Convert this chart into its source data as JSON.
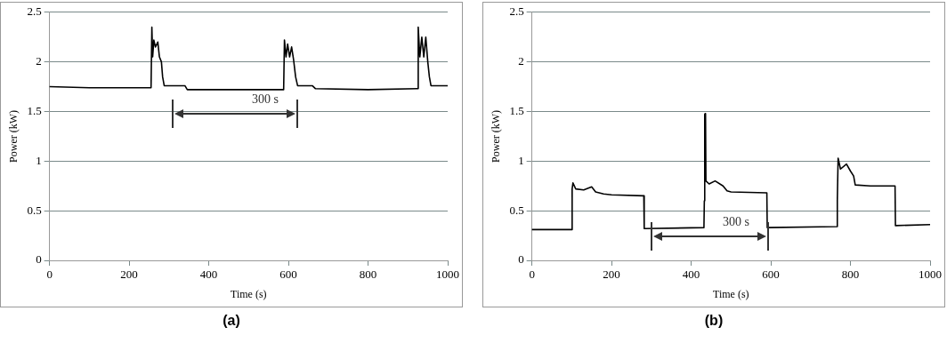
{
  "chart_data": [
    {
      "type": "line",
      "title": "(a)",
      "xlabel": "Time (s)",
      "ylabel": "Power (kW)",
      "x": [
        0,
        100,
        200,
        255,
        257,
        259,
        262,
        266,
        272,
        276,
        281,
        284,
        288,
        340,
        346,
        450,
        588,
        590,
        594,
        598,
        603,
        608,
        613,
        618,
        623,
        660,
        668,
        800,
        924,
        926,
        930,
        935,
        940,
        945,
        950,
        954,
        958,
        1000
      ],
      "series": [
        {
          "color": "#000000",
          "values": [
            1.75,
            1.74,
            1.74,
            1.74,
            2.35,
            2.05,
            2.22,
            2.15,
            2.2,
            2.05,
            2.0,
            1.85,
            1.76,
            1.76,
            1.72,
            1.72,
            1.72,
            2.22,
            2.05,
            2.18,
            2.05,
            2.15,
            2.02,
            1.85,
            1.76,
            1.76,
            1.73,
            1.72,
            1.73,
            2.35,
            2.05,
            2.25,
            2.05,
            2.25,
            2.0,
            1.85,
            1.76,
            1.76
          ]
        }
      ],
      "xlim": [
        0,
        1000
      ],
      "xticks": [
        0,
        200,
        400,
        600,
        800,
        1000
      ],
      "ylim": [
        0,
        2.5
      ],
      "yticks": [
        0,
        0.5,
        1,
        1.5,
        2,
        2.5
      ],
      "grid": "y",
      "annotations": [
        "300 s"
      ]
    },
    {
      "type": "line",
      "title": "(b)",
      "xlabel": "Time (s)",
      "ylabel": "Power (kW)",
      "x": [
        0,
        100,
        101,
        103,
        110,
        130,
        150,
        160,
        180,
        200,
        281,
        282,
        432,
        433,
        434,
        435,
        436,
        437,
        445,
        460,
        480,
        490,
        500,
        590,
        591,
        766,
        767,
        769,
        775,
        790,
        800,
        808,
        812,
        850,
        912,
        913,
        1000
      ],
      "series": [
        {
          "color": "#000000",
          "values": [
            0.31,
            0.31,
            0.72,
            0.78,
            0.72,
            0.71,
            0.74,
            0.69,
            0.67,
            0.66,
            0.65,
            0.32,
            0.33,
            0.6,
            1.47,
            1.48,
            1.47,
            0.8,
            0.77,
            0.8,
            0.75,
            0.7,
            0.69,
            0.68,
            0.33,
            0.34,
            0.6,
            1.03,
            0.92,
            0.97,
            0.9,
            0.85,
            0.76,
            0.75,
            0.75,
            0.35,
            0.36
          ]
        }
      ],
      "xlim": [
        0,
        1000
      ],
      "xticks": [
        0,
        200,
        400,
        600,
        800,
        1000
      ],
      "ylim": [
        0,
        2.5
      ],
      "yticks": [
        0,
        0.5,
        1,
        1.5,
        2,
        2.5
      ],
      "grid": "y",
      "annotations": [
        "300 s"
      ]
    }
  ]
}
